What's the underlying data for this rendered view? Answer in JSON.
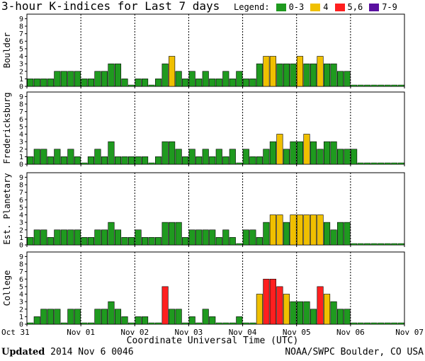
{
  "title": "3-hour K-indices for Last 7 days",
  "legend": {
    "label": "Legend:",
    "items": [
      {
        "label": "0-3",
        "color": "#1f9a1f"
      },
      {
        "label": "4",
        "color": "#f0c000"
      },
      {
        "label": "5,6",
        "color": "#ff1f1f"
      },
      {
        "label": "7-9",
        "color": "#5a10a0"
      }
    ]
  },
  "footer": {
    "updated_label": "Updated",
    "updated_value": "2014 Nov  6 0046",
    "source": "NOAA/SWPC Boulder, CO USA"
  },
  "chart_data": [
    {
      "type": "bar",
      "title": "Boulder",
      "ylabel": "Boulder",
      "xlabel": "Coordinate Universal Time (UTC)",
      "ylim": [
        0,
        9
      ],
      "yticks": [
        "0",
        "1",
        "2",
        "3",
        "4",
        "5",
        "6",
        "7",
        "8",
        "9"
      ],
      "x_tick_labels": [
        "Oct 31",
        "Nov 01",
        "Nov 02",
        "Nov 03",
        "Nov 04",
        "Nov 05",
        "Nov 06",
        "Nov 07"
      ],
      "values": [
        1,
        1,
        1,
        1,
        2,
        2,
        2,
        2,
        1,
        1,
        2,
        2,
        3,
        3,
        1,
        0,
        1,
        1,
        0,
        1,
        3,
        4,
        2,
        1,
        2,
        1,
        2,
        1,
        1,
        2,
        1,
        2,
        1,
        1,
        3,
        4,
        4,
        3,
        3,
        3,
        4,
        3,
        3,
        4,
        3,
        3,
        2,
        2,
        0,
        0,
        0,
        0,
        0,
        0,
        0,
        0
      ]
    },
    {
      "type": "bar",
      "title": "Fredericksburg",
      "ylabel": "Fredericksburg",
      "xlabel": "Coordinate Universal Time (UTC)",
      "ylim": [
        0,
        9
      ],
      "yticks": [
        "0",
        "1",
        "2",
        "3",
        "4",
        "5",
        "6",
        "7",
        "8",
        "9"
      ],
      "x_tick_labels": [
        "Oct 31",
        "Nov 01",
        "Nov 02",
        "Nov 03",
        "Nov 04",
        "Nov 05",
        "Nov 06",
        "Nov 07"
      ],
      "values": [
        1,
        2,
        2,
        1,
        2,
        1,
        2,
        1,
        0,
        1,
        2,
        1,
        3,
        1,
        1,
        1,
        1,
        1,
        0,
        1,
        3,
        3,
        2,
        1,
        2,
        1,
        2,
        1,
        2,
        1,
        2,
        0,
        2,
        1,
        1,
        2,
        3,
        4,
        2,
        3,
        3,
        4,
        3,
        2,
        3,
        3,
        2,
        2,
        2,
        0,
        0,
        0,
        0,
        0,
        0,
        0
      ]
    },
    {
      "type": "bar",
      "title": "Est. Planetary",
      "ylabel": "Est. Planetary",
      "xlabel": "Coordinate Universal Time (UTC)",
      "ylim": [
        0,
        9
      ],
      "yticks": [
        "0",
        "1",
        "2",
        "3",
        "4",
        "5",
        "6",
        "7",
        "8",
        "9"
      ],
      "x_tick_labels": [
        "Oct 31",
        "Nov 01",
        "Nov 02",
        "Nov 03",
        "Nov 04",
        "Nov 05",
        "Nov 06",
        "Nov 07"
      ],
      "values": [
        1,
        2,
        2,
        1,
        2,
        2,
        2,
        2,
        1,
        1,
        2,
        2,
        3,
        2,
        1,
        1,
        2,
        1,
        1,
        1,
        3,
        3,
        3,
        1,
        2,
        2,
        2,
        2,
        1,
        2,
        1,
        0,
        2,
        2,
        1,
        3,
        4,
        4,
        3,
        4,
        4,
        4,
        4,
        4,
        3,
        2,
        3,
        3,
        0,
        0,
        0,
        0,
        0,
        0,
        0,
        0
      ]
    },
    {
      "type": "bar",
      "title": "College",
      "ylabel": "College",
      "xlabel": "Coordinate Universal Time (UTC)",
      "ylim": [
        0,
        9
      ],
      "yticks": [
        "0",
        "1",
        "2",
        "3",
        "4",
        "5",
        "6",
        "7",
        "8",
        "9"
      ],
      "x_tick_labels": [
        "Oct 31",
        "Nov 01",
        "Nov 02",
        "Nov 03",
        "Nov 04",
        "Nov 05",
        "Nov 06",
        "Nov 07"
      ],
      "values": [
        0,
        1,
        2,
        2,
        2,
        0,
        2,
        2,
        0,
        0,
        2,
        2,
        3,
        2,
        1,
        0,
        1,
        1,
        0,
        0,
        5,
        2,
        2,
        0,
        1,
        0,
        2,
        1,
        0,
        0,
        0,
        1,
        0,
        0,
        4,
        6,
        6,
        5,
        4,
        3,
        3,
        3,
        2,
        5,
        4,
        3,
        2,
        2,
        0,
        0,
        0,
        0,
        0,
        0,
        0,
        0
      ]
    }
  ]
}
